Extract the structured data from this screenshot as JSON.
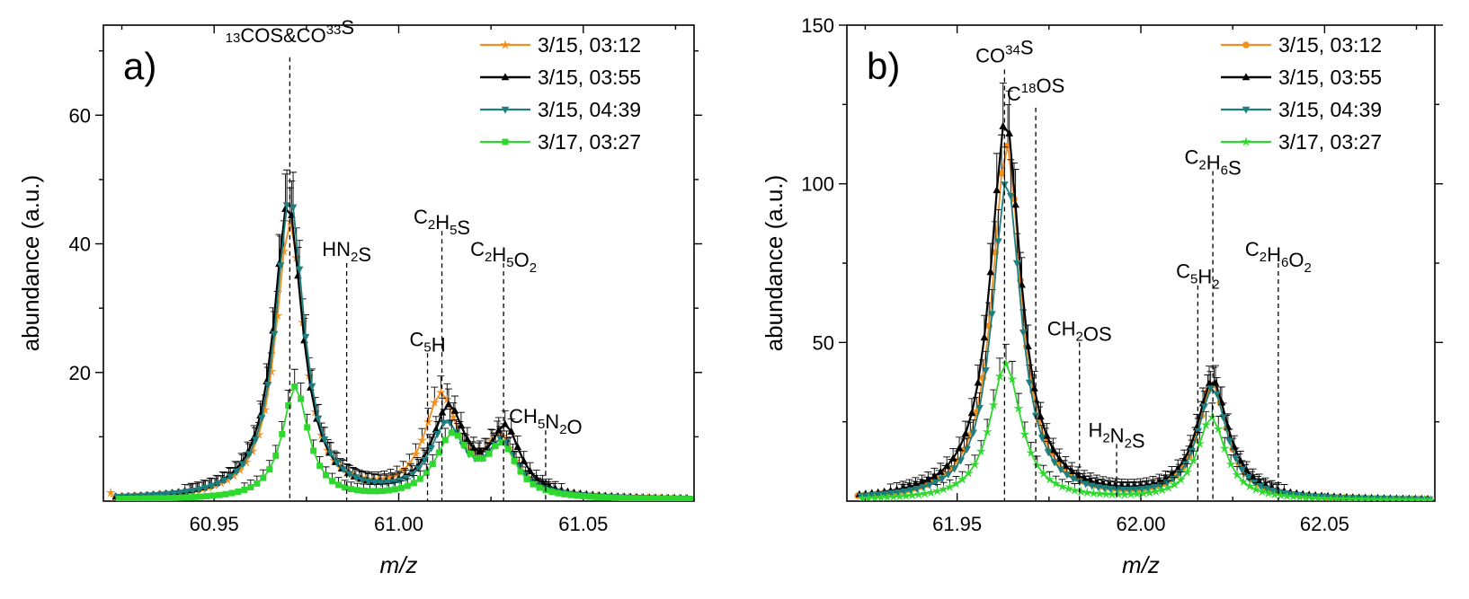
{
  "chart_data": [
    {
      "type": "line",
      "panel_label": "a)",
      "xlabel": "m/z",
      "ylabel": "abundance (a.u.)",
      "xlim": [
        60.92,
        61.08
      ],
      "ylim": [
        0,
        74
      ],
      "xticks": [
        60.95,
        61.0,
        61.05
      ],
      "xtick_labels": [
        "60.95",
        "61.00",
        "61.05"
      ],
      "yticks": [
        20,
        40,
        60
      ],
      "ytick_labels": [
        "20",
        "40",
        "60"
      ],
      "legend_position": "top-right",
      "annotations": [
        {
          "x": 60.9705,
          "y_line_top": 69,
          "main": "",
          "sup1": "13",
          "t1": "COS&CO",
          "sup2": "33",
          "t2": "S",
          "sub": "",
          "t3": ""
        },
        {
          "x": 60.9859,
          "y_line_top": 37,
          "main": "HN",
          "sub": "2",
          "t3": "S"
        },
        {
          "x": 61.0078,
          "y_line_top": 23,
          "main": "C",
          "sub": "5",
          "t3": "H"
        },
        {
          "x": 61.0117,
          "y_line_top": 42,
          "main": "C",
          "sub": "2",
          "mid": "H",
          "sub2": "5",
          "t3": "S"
        },
        {
          "x": 61.0284,
          "y_line_top": 37,
          "main": "C",
          "sub": "2",
          "mid": "H",
          "sub2": "5",
          "t3": "O",
          "sub3": "2"
        },
        {
          "x": 61.0398,
          "y_line_top": 11,
          "main": "CH",
          "sub": "5",
          "t3": "N",
          "sub3": "2",
          "t4": "O"
        }
      ],
      "series": [
        {
          "name": "3/15, 03:12",
          "color": "#f28e1c",
          "marker": "star",
          "peaks": [
            {
              "c": 60.9705,
              "h": 43,
              "w": 0.0046
            },
            {
              "c": 61.0115,
              "h": 15.5,
              "w": 0.0055
            },
            {
              "c": 61.0275,
              "h": 8.5,
              "w": 0.0048
            }
          ],
          "extra_points": [
            {
              "x": 60.922,
              "y": 1.3
            },
            {
              "x": 60.929,
              "y": 0.6
            }
          ]
        },
        {
          "name": "3/15, 03:55",
          "color": "#000000",
          "marker": "triangle-up",
          "peaks": [
            {
              "c": 60.97,
              "h": 46,
              "w": 0.0047
            },
            {
              "c": 61.0135,
              "h": 13.5,
              "w": 0.0055
            },
            {
              "c": 61.029,
              "h": 10,
              "w": 0.0048
            }
          ]
        },
        {
          "name": "3/15, 04:39",
          "color": "#1f7f7f",
          "marker": "triangle-down",
          "peaks": [
            {
              "c": 60.9705,
              "h": 47,
              "w": 0.0046
            },
            {
              "c": 61.013,
              "h": 11,
              "w": 0.0055
            },
            {
              "c": 61.028,
              "h": 8,
              "w": 0.0048
            }
          ]
        },
        {
          "name": "3/17, 03:27",
          "color": "#2ed82e",
          "marker": "square",
          "peaks": [
            {
              "c": 60.972,
              "h": 17.5,
              "w": 0.0042
            },
            {
              "c": 61.0145,
              "h": 9.5,
              "w": 0.0055
            },
            {
              "c": 61.028,
              "h": 7.5,
              "w": 0.0048
            }
          ]
        }
      ]
    },
    {
      "type": "line",
      "panel_label": "b)",
      "xlabel": "m/z",
      "ylabel": "abundance (a.u.)",
      "xlim": [
        61.92,
        62.08
      ],
      "ylim": [
        0,
        150
      ],
      "xticks": [
        61.95,
        62.0,
        62.05
      ],
      "xtick_labels": [
        "61.95",
        "62.00",
        "62.05"
      ],
      "yticks": [
        50,
        100,
        150
      ],
      "ytick_labels": [
        "50",
        "100",
        "150"
      ],
      "legend_position": "top-right",
      "annotations": [
        {
          "x": 61.9629,
          "y_line_top": 136,
          "main": "CO",
          "sup1": "34",
          "t1": "S"
        },
        {
          "x": 61.9714,
          "y_line_top": 124,
          "main": "C",
          "sup1": "18",
          "t1": "OS"
        },
        {
          "x": 61.9833,
          "y_line_top": 50,
          "main": "CH",
          "sub": "2",
          "t3": "OS"
        },
        {
          "x": 61.9934,
          "y_line_top": 18,
          "main": "H",
          "sub": "2",
          "t3": "N",
          "sub3": "2",
          "t4": "S"
        },
        {
          "x": 62.0155,
          "y_line_top": 68,
          "main": "C",
          "sub": "5",
          "t3": "H",
          "sub3": "2"
        },
        {
          "x": 62.0196,
          "y_line_top": 104,
          "main": "C",
          "sub": "2",
          "mid": "H",
          "sub2": "6",
          "t3": "S"
        },
        {
          "x": 62.0374,
          "y_line_top": 75,
          "main": "C",
          "sub": "2",
          "mid": "H",
          "sub2": "6",
          "t3": "O",
          "sub3": "2"
        }
      ],
      "series": [
        {
          "name": "3/15, 03:12",
          "color": "#f28e1c",
          "marker": "circle",
          "peaks": [
            {
              "c": 61.9635,
              "h": 112,
              "w": 0.0047
            },
            {
              "c": 62.0195,
              "h": 36,
              "w": 0.0048
            }
          ]
        },
        {
          "name": "3/15, 03:55",
          "color": "#000000",
          "marker": "triangle-up",
          "peaks": [
            {
              "c": 61.9632,
              "h": 120,
              "w": 0.005
            },
            {
              "c": 62.0195,
              "h": 37,
              "w": 0.0052
            }
          ]
        },
        {
          "name": "3/15, 04:39",
          "color": "#1f7f7f",
          "marker": "triangle-down",
          "peaks": [
            {
              "c": 61.9635,
              "h": 101,
              "w": 0.0047
            },
            {
              "c": 62.0195,
              "h": 35,
              "w": 0.0048
            }
          ]
        },
        {
          "name": "3/17, 03:27",
          "color": "#2ed82e",
          "marker": "star",
          "peaks": [
            {
              "c": 61.9632,
              "h": 43,
              "w": 0.005
            },
            {
              "c": 62.0192,
              "h": 26,
              "w": 0.0046
            }
          ]
        }
      ]
    }
  ]
}
